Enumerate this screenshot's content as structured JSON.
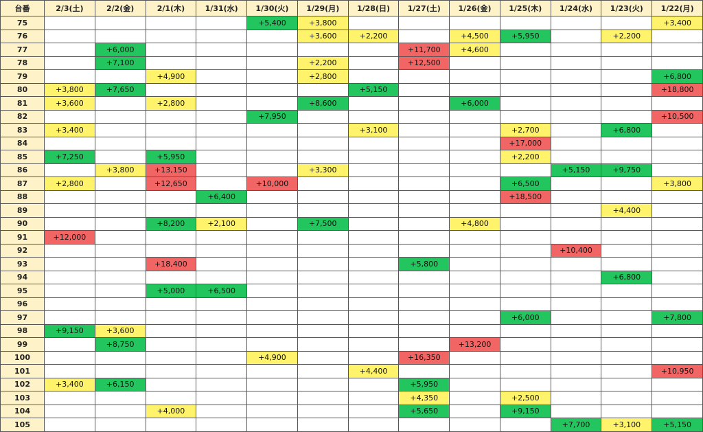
{
  "header": {
    "corner_label": "台番",
    "dates": [
      "2/3(土)",
      "2/2(金)",
      "2/1(木)",
      "1/31(水)",
      "1/30(火)",
      "1/29(月)",
      "1/28(日)",
      "1/27(土)",
      "1/26(金)",
      "1/25(木)",
      "1/24(水)",
      "1/23(火)",
      "1/22(月)"
    ]
  },
  "colors": {
    "green": "#22c55e",
    "yellow": "#fef36a",
    "red": "#f26565",
    "header_bg": "#fdf2c8"
  },
  "rows": [
    {
      "id": "75",
      "cells": [
        {},
        {},
        {},
        {},
        {
          "v": "+5,400",
          "c": "g"
        },
        {
          "v": "+3,800",
          "c": "y"
        },
        {},
        {},
        {},
        {},
        {},
        {},
        {
          "v": "+3,400",
          "c": "y"
        }
      ]
    },
    {
      "id": "76",
      "cells": [
        {},
        {},
        {},
        {},
        {},
        {
          "v": "+3,600",
          "c": "y"
        },
        {
          "v": "+2,200",
          "c": "y"
        },
        {},
        {
          "v": "+4,500",
          "c": "y"
        },
        {
          "v": "+5,950",
          "c": "g"
        },
        {},
        {
          "v": "+2,200",
          "c": "y"
        },
        {}
      ]
    },
    {
      "id": "77",
      "cells": [
        {},
        {
          "v": "+6,000",
          "c": "g"
        },
        {},
        {},
        {},
        {},
        {},
        {
          "v": "+11,700",
          "c": "r"
        },
        {
          "v": "+4,600",
          "c": "y"
        },
        {},
        {},
        {},
        {}
      ]
    },
    {
      "id": "78",
      "cells": [
        {},
        {
          "v": "+7,100",
          "c": "g"
        },
        {},
        {},
        {},
        {
          "v": "+2,200",
          "c": "y"
        },
        {},
        {
          "v": "+12,500",
          "c": "r"
        },
        {},
        {},
        {},
        {},
        {}
      ]
    },
    {
      "id": "79",
      "cells": [
        {},
        {},
        {
          "v": "+4,900",
          "c": "y"
        },
        {},
        {},
        {
          "v": "+2,800",
          "c": "y"
        },
        {},
        {},
        {},
        {},
        {},
        {},
        {
          "v": "+6,800",
          "c": "g"
        }
      ]
    },
    {
      "id": "80",
      "cells": [
        {
          "v": "+3,800",
          "c": "y"
        },
        {
          "v": "+7,650",
          "c": "g"
        },
        {},
        {},
        {},
        {},
        {
          "v": "+5,150",
          "c": "g"
        },
        {},
        {},
        {},
        {},
        {},
        {
          "v": "+18,800",
          "c": "r"
        }
      ]
    },
    {
      "id": "81",
      "cells": [
        {
          "v": "+3,600",
          "c": "y"
        },
        {},
        {
          "v": "+2,800",
          "c": "y"
        },
        {},
        {},
        {
          "v": "+8,600",
          "c": "g"
        },
        {},
        {},
        {
          "v": "+6,000",
          "c": "g"
        },
        {},
        {},
        {},
        {}
      ]
    },
    {
      "id": "82",
      "cells": [
        {},
        {},
        {},
        {},
        {
          "v": "+7,950",
          "c": "g"
        },
        {},
        {},
        {},
        {},
        {},
        {},
        {},
        {
          "v": "+10,500",
          "c": "r"
        }
      ]
    },
    {
      "id": "83",
      "cells": [
        {
          "v": "+3,400",
          "c": "y"
        },
        {},
        {},
        {},
        {},
        {},
        {
          "v": "+3,100",
          "c": "y"
        },
        {},
        {},
        {
          "v": "+2,700",
          "c": "y"
        },
        {},
        {
          "v": "+6,800",
          "c": "g"
        },
        {}
      ]
    },
    {
      "id": "84",
      "cells": [
        {},
        {},
        {},
        {},
        {},
        {},
        {},
        {},
        {},
        {
          "v": "+17,000",
          "c": "r"
        },
        {},
        {},
        {}
      ]
    },
    {
      "id": "85",
      "cells": [
        {
          "v": "+7,250",
          "c": "g"
        },
        {},
        {
          "v": "+5,950",
          "c": "g"
        },
        {},
        {},
        {},
        {},
        {},
        {},
        {
          "v": "+2,200",
          "c": "y"
        },
        {},
        {},
        {}
      ]
    },
    {
      "id": "86",
      "cells": [
        {},
        {
          "v": "+3,800",
          "c": "y"
        },
        {
          "v": "+13,150",
          "c": "r"
        },
        {},
        {},
        {
          "v": "+3,300",
          "c": "y"
        },
        {},
        {},
        {},
        {},
        {
          "v": "+5,150",
          "c": "g"
        },
        {
          "v": "+9,750",
          "c": "g"
        },
        {}
      ]
    },
    {
      "id": "87",
      "cells": [
        {
          "v": "+2,800",
          "c": "y"
        },
        {},
        {
          "v": "+12,650",
          "c": "r"
        },
        {},
        {
          "v": "+10,000",
          "c": "r"
        },
        {},
        {},
        {},
        {},
        {
          "v": "+6,500",
          "c": "g"
        },
        {},
        {},
        {
          "v": "+3,800",
          "c": "y"
        }
      ]
    },
    {
      "id": "88",
      "cells": [
        {},
        {},
        {},
        {
          "v": "+6,400",
          "c": "g"
        },
        {},
        {},
        {},
        {},
        {},
        {
          "v": "+18,500",
          "c": "r"
        },
        {},
        {},
        {}
      ]
    },
    {
      "id": "89",
      "cells": [
        {},
        {},
        {},
        {},
        {},
        {},
        {},
        {},
        {},
        {},
        {},
        {
          "v": "+4,400",
          "c": "y"
        },
        {}
      ]
    },
    {
      "id": "90",
      "cells": [
        {},
        {},
        {
          "v": "+8,200",
          "c": "g"
        },
        {
          "v": "+2,100",
          "c": "y"
        },
        {},
        {
          "v": "+7,500",
          "c": "g"
        },
        {},
        {},
        {
          "v": "+4,800",
          "c": "y"
        },
        {},
        {},
        {},
        {}
      ]
    },
    {
      "id": "91",
      "cells": [
        {
          "v": "+12,000",
          "c": "r"
        },
        {},
        {},
        {},
        {},
        {},
        {},
        {},
        {},
        {},
        {},
        {},
        {}
      ]
    },
    {
      "id": "92",
      "cells": [
        {},
        {},
        {},
        {},
        {},
        {},
        {},
        {},
        {},
        {},
        {
          "v": "+10,400",
          "c": "r"
        },
        {},
        {}
      ]
    },
    {
      "id": "93",
      "cells": [
        {},
        {},
        {
          "v": "+18,400",
          "c": "r"
        },
        {},
        {},
        {},
        {},
        {
          "v": "+5,800",
          "c": "g"
        },
        {},
        {},
        {},
        {},
        {}
      ]
    },
    {
      "id": "94",
      "cells": [
        {},
        {},
        {},
        {},
        {},
        {},
        {},
        {},
        {},
        {},
        {},
        {
          "v": "+6,800",
          "c": "g"
        },
        {}
      ]
    },
    {
      "id": "95",
      "cells": [
        {},
        {},
        {
          "v": "+5,000",
          "c": "g"
        },
        {
          "v": "+6,500",
          "c": "g"
        },
        {},
        {},
        {},
        {},
        {},
        {},
        {},
        {},
        {}
      ]
    },
    {
      "id": "96",
      "cells": [
        {},
        {},
        {},
        {},
        {},
        {},
        {},
        {},
        {},
        {},
        {},
        {},
        {}
      ]
    },
    {
      "id": "97",
      "cells": [
        {},
        {},
        {},
        {},
        {},
        {},
        {},
        {},
        {},
        {
          "v": "+6,000",
          "c": "g"
        },
        {},
        {},
        {
          "v": "+7,800",
          "c": "g"
        }
      ]
    },
    {
      "id": "98",
      "cells": [
        {
          "v": "+9,150",
          "c": "g"
        },
        {
          "v": "+3,600",
          "c": "y"
        },
        {},
        {},
        {},
        {},
        {},
        {},
        {},
        {},
        {},
        {},
        {}
      ]
    },
    {
      "id": "99",
      "cells": [
        {},
        {
          "v": "+8,750",
          "c": "g"
        },
        {},
        {},
        {},
        {},
        {},
        {},
        {
          "v": "+13,200",
          "c": "r"
        },
        {},
        {},
        {},
        {}
      ]
    },
    {
      "id": "100",
      "cells": [
        {},
        {},
        {},
        {},
        {
          "v": "+4,900",
          "c": "y"
        },
        {},
        {},
        {
          "v": "+16,350",
          "c": "r"
        },
        {},
        {},
        {},
        {},
        {}
      ]
    },
    {
      "id": "101",
      "cells": [
        {},
        {},
        {},
        {},
        {},
        {},
        {
          "v": "+4,400",
          "c": "y"
        },
        {},
        {},
        {},
        {},
        {},
        {
          "v": "+10,950",
          "c": "r"
        }
      ]
    },
    {
      "id": "102",
      "cells": [
        {
          "v": "+3,400",
          "c": "y"
        },
        {
          "v": "+6,150",
          "c": "g"
        },
        {},
        {},
        {},
        {},
        {},
        {
          "v": "+5,950",
          "c": "g"
        },
        {},
        {},
        {},
        {},
        {}
      ]
    },
    {
      "id": "103",
      "cells": [
        {},
        {},
        {},
        {},
        {},
        {},
        {},
        {
          "v": "+4,350",
          "c": "y"
        },
        {},
        {
          "v": "+2,500",
          "c": "y"
        },
        {},
        {},
        {}
      ]
    },
    {
      "id": "104",
      "cells": [
        {},
        {},
        {
          "v": "+4,000",
          "c": "y"
        },
        {},
        {},
        {},
        {},
        {
          "v": "+5,650",
          "c": "g"
        },
        {},
        {
          "v": "+9,150",
          "c": "g"
        },
        {},
        {},
        {}
      ]
    },
    {
      "id": "105",
      "cells": [
        {},
        {},
        {},
        {},
        {},
        {},
        {},
        {},
        {},
        {},
        {
          "v": "+7,700",
          "c": "g"
        },
        {
          "v": "+3,100",
          "c": "y"
        },
        {
          "v": "+5,150",
          "c": "g"
        }
      ]
    }
  ]
}
